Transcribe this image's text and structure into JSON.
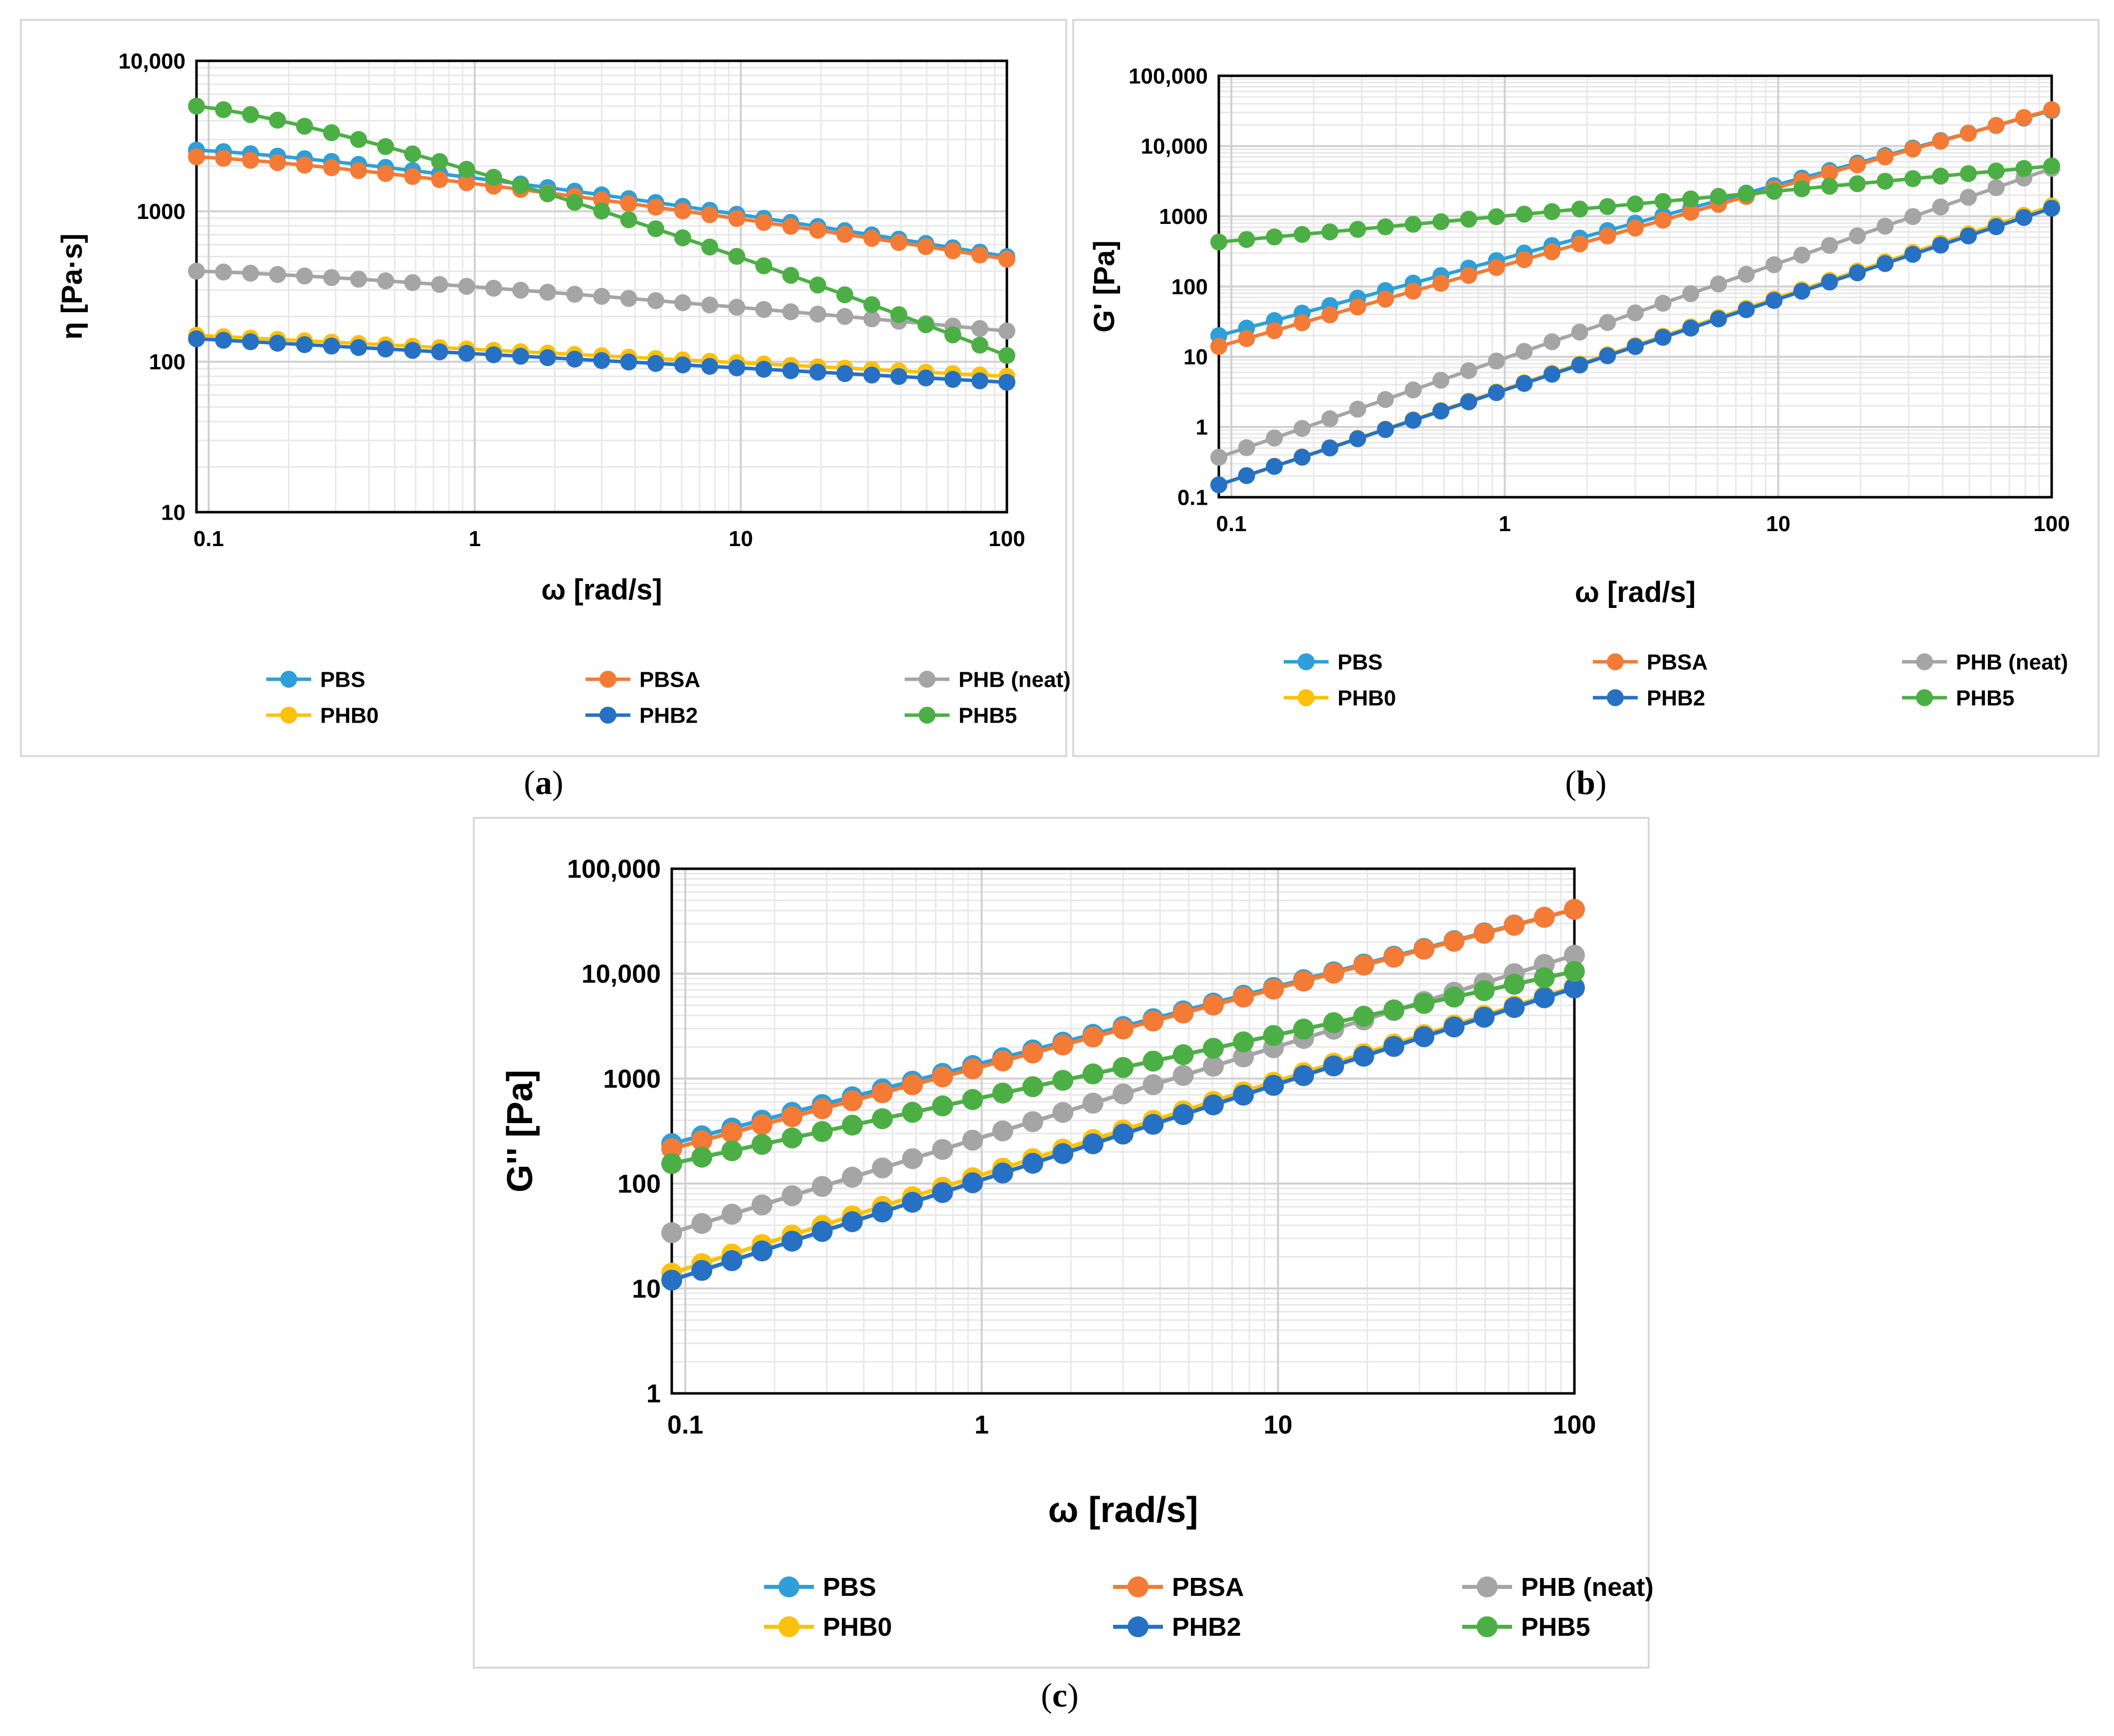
{
  "colors": {
    "PBS": "#2e9fd8",
    "PBSA": "#f47b35",
    "PHB (neat)": "#a5a5a5",
    "PHB0": "#fcc10b",
    "PHB2": "#2671c4",
    "PHB5": "#4caf45",
    "major_grid": "#d0d0d0",
    "minor_grid": "#e8e8e8",
    "axis": "#000000"
  },
  "captions": {
    "a": [
      "(",
      "a",
      ")"
    ],
    "b": [
      "(",
      "b",
      ")"
    ],
    "c": [
      "(",
      "c",
      ")"
    ]
  },
  "chart_data": [
    {
      "id": "a",
      "type": "line",
      "title": "",
      "xlabel": "ω [rad/s]",
      "ylabel": "η [Pa·s]",
      "xscale": "log",
      "yscale": "log",
      "xlim": [
        0.09,
        100
      ],
      "ylim": [
        10,
        10000
      ],
      "x_ticks": [
        0.1,
        1,
        10,
        100
      ],
      "x_tick_labels": [
        "0.1",
        "1",
        "10",
        "100"
      ],
      "y_ticks": [
        10,
        100,
        1000,
        10000
      ],
      "y_tick_labels": [
        "10",
        "100",
        "1000",
        "10,000"
      ],
      "grid": true,
      "legend": "bottom",
      "series": [
        {
          "name": "PBS",
          "y_start": 2550,
          "y_end": 500,
          "shape": "shear"
        },
        {
          "name": "PBSA",
          "y_start": 2300,
          "y_end": 480,
          "shape": "shear"
        },
        {
          "name": "PHB (neat)",
          "y_start": 400,
          "y_end": 160,
          "shape": "shear"
        },
        {
          "name": "PHB0",
          "y_start": 150,
          "y_end": 80,
          "shape": "power"
        },
        {
          "name": "PHB2",
          "y_start": 142,
          "y_end": 73,
          "shape": "power"
        },
        {
          "name": "PHB5",
          "y_start": 5000,
          "y_end": 110,
          "shape": "shear"
        }
      ]
    },
    {
      "id": "b",
      "type": "line",
      "title": "",
      "xlabel": "ω [rad/s]",
      "ylabel": "G' [Pa]",
      "xscale": "log",
      "yscale": "log",
      "xlim": [
        0.09,
        100
      ],
      "ylim": [
        0.1,
        100000
      ],
      "x_ticks": [
        0.1,
        1,
        10,
        100
      ],
      "x_tick_labels": [
        "0.1",
        "1",
        "10",
        "100"
      ],
      "y_ticks": [
        0.1,
        1,
        10,
        100,
        1000,
        10000,
        100000
      ],
      "y_tick_labels": [
        "0.1",
        "1",
        "10",
        "100",
        "1000",
        "10,000",
        "100,000"
      ],
      "grid": true,
      "legend": "bottom",
      "series": [
        {
          "name": "PBS",
          "y_start": 20,
          "y_end": 32000,
          "shape": "power"
        },
        {
          "name": "PBSA",
          "y_start": 14,
          "y_end": 33000,
          "shape": "power"
        },
        {
          "name": "PHB (neat)",
          "y_start": 0.37,
          "y_end": 4800,
          "shape": "power"
        },
        {
          "name": "PHB0",
          "y_start": 0.15,
          "y_end": 1400,
          "shape": "power"
        },
        {
          "name": "PHB2",
          "y_start": 0.15,
          "y_end": 1300,
          "shape": "power"
        },
        {
          "name": "PHB5",
          "y_start": 430,
          "y_end": 5200,
          "shape": "power"
        }
      ]
    },
    {
      "id": "c",
      "type": "line",
      "title": "",
      "xlabel": "ω [rad/s]",
      "ylabel": "G'' [Pa]",
      "xscale": "log",
      "yscale": "log",
      "xlim": [
        0.09,
        100
      ],
      "ylim": [
        1,
        100000
      ],
      "x_ticks": [
        0.1,
        1,
        10,
        100
      ],
      "x_tick_labels": [
        "0.1",
        "1",
        "10",
        "100"
      ],
      "y_ticks": [
        1,
        10,
        100,
        1000,
        10000,
        100000
      ],
      "y_tick_labels": [
        "1",
        "10",
        "100",
        "1000",
        "10,000",
        "100,000"
      ],
      "grid": true,
      "legend": "bottom",
      "series": [
        {
          "name": "PBS",
          "y_start": 240,
          "y_end": 41000,
          "shape": "power"
        },
        {
          "name": "PBSA",
          "y_start": 215,
          "y_end": 41000,
          "shape": "power"
        },
        {
          "name": "PHB (neat)",
          "y_start": 34,
          "y_end": 15000,
          "shape": "power"
        },
        {
          "name": "PHB0",
          "y_start": 14,
          "y_end": 7500,
          "shape": "power"
        },
        {
          "name": "PHB2",
          "y_start": 12,
          "y_end": 7300,
          "shape": "power"
        },
        {
          "name": "PHB5",
          "y_start": 155,
          "y_end": 10500,
          "shape": "power"
        }
      ]
    }
  ]
}
